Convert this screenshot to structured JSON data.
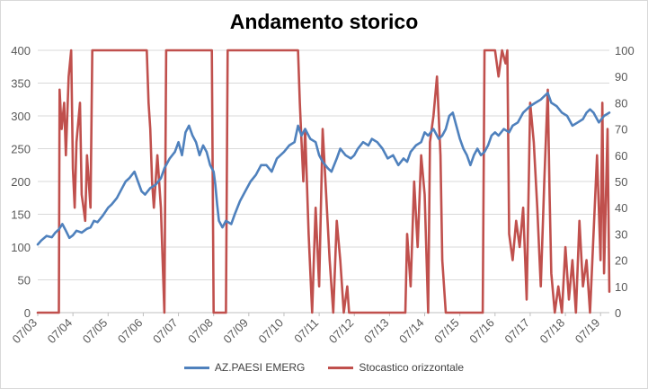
{
  "chart_data": {
    "type": "line",
    "title": "Andamento storico",
    "xlabel": "",
    "ylabel": "",
    "y_left": {
      "min": 0,
      "max": 400,
      "ticks": [
        0,
        50,
        100,
        150,
        200,
        250,
        300,
        350,
        400
      ]
    },
    "y_right": {
      "min": 0,
      "max": 100,
      "ticks": [
        0,
        10,
        20,
        30,
        40,
        50,
        60,
        70,
        80,
        90,
        100
      ]
    },
    "x_ticks": [
      "07/03",
      "07/04",
      "07/05",
      "07/06",
      "07/07",
      "07/08",
      "07/09",
      "07/10",
      "07/11",
      "07/12",
      "07/13",
      "07/14",
      "07/15",
      "07/16",
      "07/17",
      "07/18",
      "07/19"
    ],
    "x_range": [
      2003.5,
      2019.75
    ],
    "grid": true,
    "legend_position": "bottom",
    "series": [
      {
        "name": "AZ.PAESI EMERG",
        "axis": "left",
        "color": "#4f81bd",
        "points": [
          [
            2003.5,
            104
          ],
          [
            2003.6,
            110
          ],
          [
            2003.75,
            117
          ],
          [
            2003.9,
            115
          ],
          [
            2004.0,
            122
          ],
          [
            2004.1,
            127
          ],
          [
            2004.2,
            135
          ],
          [
            2004.3,
            125
          ],
          [
            2004.4,
            114
          ],
          [
            2004.5,
            118
          ],
          [
            2004.6,
            125
          ],
          [
            2004.75,
            122
          ],
          [
            2004.9,
            128
          ],
          [
            2005.0,
            130
          ],
          [
            2005.1,
            140
          ],
          [
            2005.2,
            138
          ],
          [
            2005.35,
            148
          ],
          [
            2005.5,
            160
          ],
          [
            2005.6,
            165
          ],
          [
            2005.75,
            175
          ],
          [
            2005.9,
            190
          ],
          [
            2006.0,
            200
          ],
          [
            2006.1,
            205
          ],
          [
            2006.25,
            215
          ],
          [
            2006.35,
            200
          ],
          [
            2006.45,
            185
          ],
          [
            2006.55,
            180
          ],
          [
            2006.7,
            190
          ],
          [
            2006.85,
            195
          ],
          [
            2007.0,
            205
          ],
          [
            2007.1,
            220
          ],
          [
            2007.25,
            235
          ],
          [
            2007.4,
            245
          ],
          [
            2007.5,
            260
          ],
          [
            2007.6,
            240
          ],
          [
            2007.7,
            275
          ],
          [
            2007.8,
            285
          ],
          [
            2007.9,
            270
          ],
          [
            2008.0,
            260
          ],
          [
            2008.1,
            240
          ],
          [
            2008.2,
            255
          ],
          [
            2008.3,
            245
          ],
          [
            2008.4,
            225
          ],
          [
            2008.5,
            215
          ],
          [
            2008.55,
            195
          ],
          [
            2008.6,
            165
          ],
          [
            2008.65,
            140
          ],
          [
            2008.75,
            130
          ],
          [
            2008.85,
            140
          ],
          [
            2009.0,
            135
          ],
          [
            2009.1,
            150
          ],
          [
            2009.25,
            170
          ],
          [
            2009.4,
            185
          ],
          [
            2009.55,
            200
          ],
          [
            2009.7,
            210
          ],
          [
            2009.85,
            225
          ],
          [
            2010.0,
            225
          ],
          [
            2010.15,
            215
          ],
          [
            2010.3,
            235
          ],
          [
            2010.5,
            245
          ],
          [
            2010.65,
            255
          ],
          [
            2010.8,
            260
          ],
          [
            2010.9,
            285
          ],
          [
            2011.0,
            270
          ],
          [
            2011.1,
            280
          ],
          [
            2011.25,
            265
          ],
          [
            2011.4,
            260
          ],
          [
            2011.5,
            240
          ],
          [
            2011.6,
            230
          ],
          [
            2011.75,
            220
          ],
          [
            2011.85,
            215
          ],
          [
            2012.0,
            235
          ],
          [
            2012.1,
            250
          ],
          [
            2012.25,
            240
          ],
          [
            2012.4,
            235
          ],
          [
            2012.5,
            240
          ],
          [
            2012.6,
            250
          ],
          [
            2012.75,
            260
          ],
          [
            2012.9,
            255
          ],
          [
            2013.0,
            265
          ],
          [
            2013.15,
            260
          ],
          [
            2013.3,
            250
          ],
          [
            2013.45,
            235
          ],
          [
            2013.6,
            240
          ],
          [
            2013.75,
            225
          ],
          [
            2013.9,
            235
          ],
          [
            2014.0,
            230
          ],
          [
            2014.1,
            245
          ],
          [
            2014.25,
            255
          ],
          [
            2014.4,
            260
          ],
          [
            2014.5,
            275
          ],
          [
            2014.6,
            270
          ],
          [
            2014.75,
            280
          ],
          [
            2014.9,
            265
          ],
          [
            2015.0,
            270
          ],
          [
            2015.1,
            280
          ],
          [
            2015.2,
            300
          ],
          [
            2015.3,
            305
          ],
          [
            2015.4,
            285
          ],
          [
            2015.5,
            265
          ],
          [
            2015.6,
            250
          ],
          [
            2015.7,
            240
          ],
          [
            2015.8,
            225
          ],
          [
            2015.9,
            240
          ],
          [
            2016.0,
            250
          ],
          [
            2016.1,
            240
          ],
          [
            2016.2,
            245
          ],
          [
            2016.3,
            255
          ],
          [
            2016.4,
            270
          ],
          [
            2016.5,
            275
          ],
          [
            2016.6,
            270
          ],
          [
            2016.75,
            280
          ],
          [
            2016.9,
            275
          ],
          [
            2017.0,
            285
          ],
          [
            2017.15,
            290
          ],
          [
            2017.3,
            305
          ],
          [
            2017.5,
            315
          ],
          [
            2017.65,
            320
          ],
          [
            2017.8,
            325
          ],
          [
            2017.9,
            330
          ],
          [
            2018.0,
            335
          ],
          [
            2018.1,
            320
          ],
          [
            2018.25,
            315
          ],
          [
            2018.4,
            305
          ],
          [
            2018.55,
            300
          ],
          [
            2018.7,
            285
          ],
          [
            2018.85,
            290
          ],
          [
            2019.0,
            295
          ],
          [
            2019.1,
            305
          ],
          [
            2019.2,
            310
          ],
          [
            2019.3,
            305
          ],
          [
            2019.45,
            290
          ],
          [
            2019.6,
            300
          ],
          [
            2019.75,
            305
          ]
        ]
      },
      {
        "name": "Stocastico orizzontale",
        "axis": "right",
        "color": "#c0504d",
        "points": [
          [
            2003.5,
            0
          ],
          [
            2004.1,
            0
          ],
          [
            2004.12,
            85
          ],
          [
            2004.18,
            70
          ],
          [
            2004.25,
            80
          ],
          [
            2004.3,
            60
          ],
          [
            2004.38,
            90
          ],
          [
            2004.45,
            100
          ],
          [
            2004.5,
            55
          ],
          [
            2004.55,
            40
          ],
          [
            2004.6,
            65
          ],
          [
            2004.7,
            80
          ],
          [
            2004.75,
            45
          ],
          [
            2004.8,
            40
          ],
          [
            2004.85,
            35
          ],
          [
            2004.9,
            60
          ],
          [
            2005.0,
            40
          ],
          [
            2005.05,
            100
          ],
          [
            2006.6,
            100
          ],
          [
            2006.65,
            80
          ],
          [
            2006.7,
            70
          ],
          [
            2006.75,
            50
          ],
          [
            2006.8,
            40
          ],
          [
            2006.9,
            60
          ],
          [
            2007.0,
            40
          ],
          [
            2007.1,
            0
          ],
          [
            2007.15,
            100
          ],
          [
            2008.45,
            100
          ],
          [
            2008.5,
            0
          ],
          [
            2008.85,
            0
          ],
          [
            2008.9,
            100
          ],
          [
            2010.9,
            100
          ],
          [
            2010.95,
            80
          ],
          [
            2011.0,
            65
          ],
          [
            2011.05,
            50
          ],
          [
            2011.1,
            70
          ],
          [
            2011.2,
            30
          ],
          [
            2011.3,
            0
          ],
          [
            2011.35,
            20
          ],
          [
            2011.4,
            40
          ],
          [
            2011.5,
            10
          ],
          [
            2011.6,
            70
          ],
          [
            2011.7,
            45
          ],
          [
            2011.8,
            20
          ],
          [
            2011.9,
            0
          ],
          [
            2012.0,
            35
          ],
          [
            2012.1,
            20
          ],
          [
            2012.2,
            0
          ],
          [
            2012.3,
            10
          ],
          [
            2012.35,
            0
          ],
          [
            2013.95,
            0
          ],
          [
            2014.0,
            30
          ],
          [
            2014.1,
            10
          ],
          [
            2014.2,
            50
          ],
          [
            2014.3,
            25
          ],
          [
            2014.4,
            60
          ],
          [
            2014.5,
            45
          ],
          [
            2014.6,
            0
          ],
          [
            2014.65,
            65
          ],
          [
            2014.75,
            75
          ],
          [
            2014.85,
            90
          ],
          [
            2014.95,
            60
          ],
          [
            2015.0,
            20
          ],
          [
            2015.1,
            0
          ],
          [
            2016.15,
            0
          ],
          [
            2016.2,
            100
          ],
          [
            2016.5,
            100
          ],
          [
            2016.6,
            90
          ],
          [
            2016.7,
            100
          ],
          [
            2016.8,
            95
          ],
          [
            2016.85,
            100
          ],
          [
            2016.9,
            30
          ],
          [
            2017.0,
            20
          ],
          [
            2017.1,
            35
          ],
          [
            2017.2,
            25
          ],
          [
            2017.3,
            40
          ],
          [
            2017.4,
            5
          ],
          [
            2017.5,
            80
          ],
          [
            2017.6,
            65
          ],
          [
            2017.7,
            40
          ],
          [
            2017.8,
            10
          ],
          [
            2017.9,
            50
          ],
          [
            2018.0,
            85
          ],
          [
            2018.05,
            45
          ],
          [
            2018.1,
            15
          ],
          [
            2018.2,
            0
          ],
          [
            2018.3,
            10
          ],
          [
            2018.4,
            0
          ],
          [
            2018.5,
            25
          ],
          [
            2018.6,
            5
          ],
          [
            2018.7,
            20
          ],
          [
            2018.8,
            0
          ],
          [
            2018.9,
            35
          ],
          [
            2019.0,
            10
          ],
          [
            2019.1,
            20
          ],
          [
            2019.2,
            0
          ],
          [
            2019.3,
            30
          ],
          [
            2019.4,
            60
          ],
          [
            2019.5,
            20
          ],
          [
            2019.55,
            80
          ],
          [
            2019.6,
            15
          ],
          [
            2019.7,
            70
          ],
          [
            2019.75,
            8
          ]
        ]
      }
    ]
  }
}
